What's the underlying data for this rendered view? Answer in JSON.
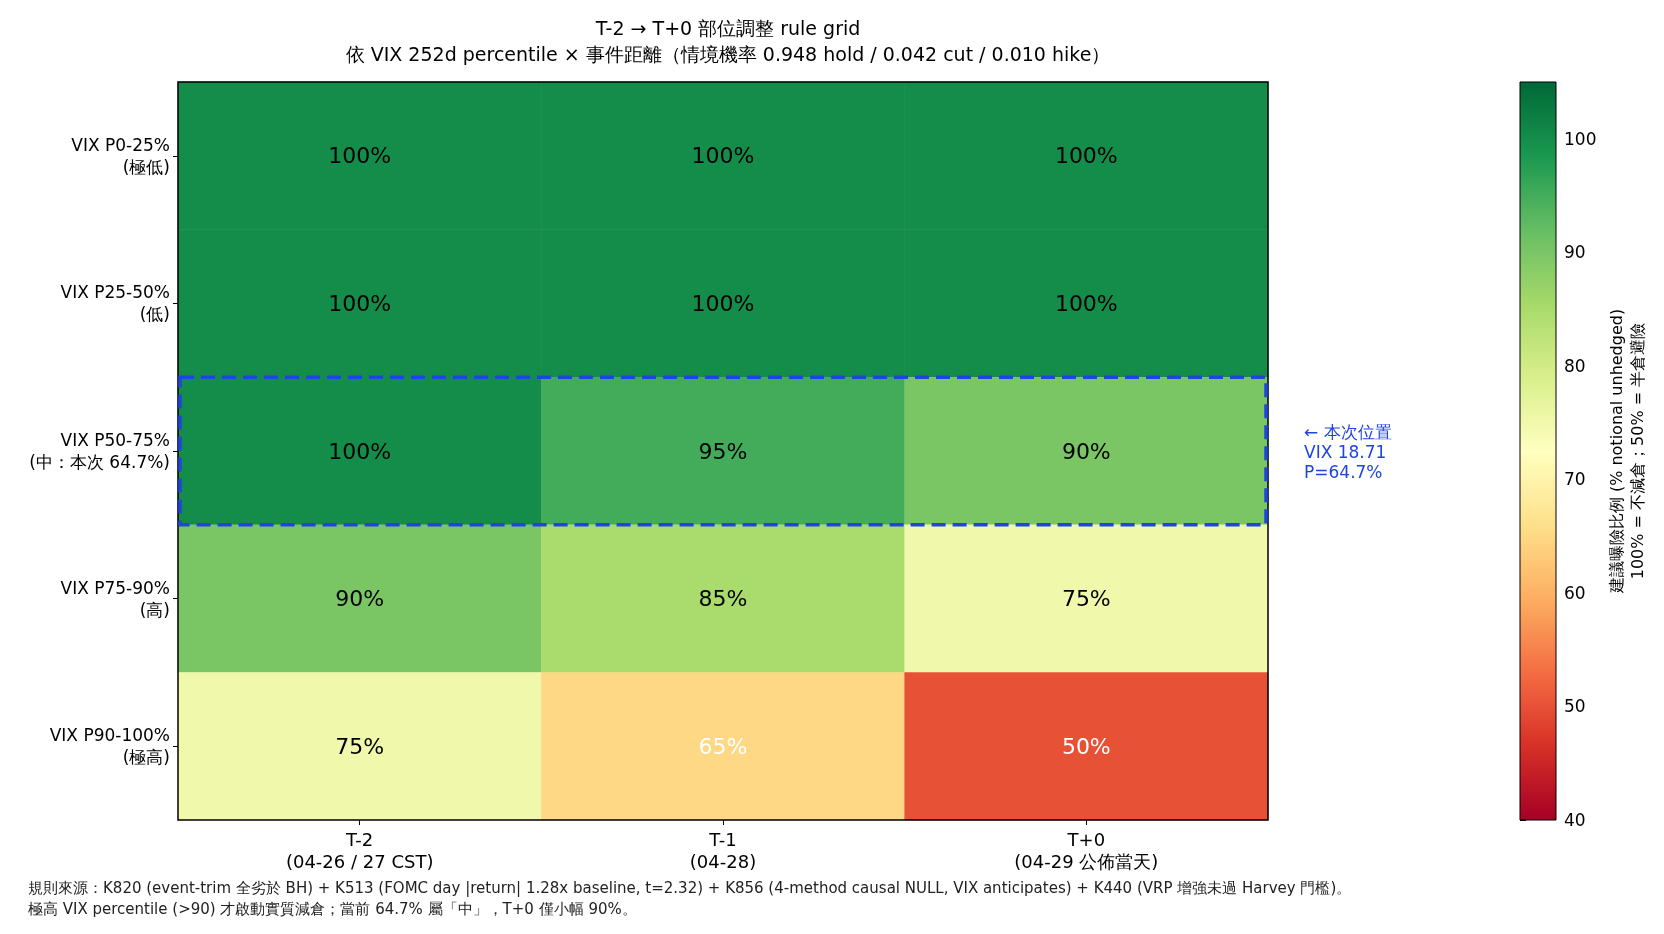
{
  "chart_data": {
    "type": "heatmap",
    "title": "T-2 → T+0 部位調整 rule grid",
    "subtitle": "依 VIX 252d percentile × 事件距離（情境機率 0.948 hold / 0.042 cut / 0.010 hike）",
    "categories": [
      "T-2\n(04-26 / 27 CST)",
      "T-1\n(04-28)",
      "T+0\n(04-29 公佈當天)"
    ],
    "y_categories": [
      "VIX P0-25%\n(極低)",
      "VIX P25-50%\n(低)",
      "VIX P50-75%\n(中：本次 64.7%)",
      "VIX P75-90%\n(高)",
      "VIX P90-100%\n(極高)"
    ],
    "cells": [
      [
        100,
        100,
        100
      ],
      [
        100,
        100,
        100
      ],
      [
        100,
        95,
        90
      ],
      [
        90,
        85,
        75
      ],
      [
        75,
        65,
        50
      ]
    ],
    "cell_labels": [
      [
        "100%",
        "100%",
        "100%"
      ],
      [
        "100%",
        "100%",
        "100%"
      ],
      [
        "100%",
        "95%",
        "90%"
      ],
      [
        "90%",
        "85%",
        "75%"
      ],
      [
        "75%",
        "65%",
        "50%"
      ]
    ],
    "clim": [
      40,
      105
    ],
    "cticks": [
      40,
      50,
      60,
      70,
      80,
      90,
      100
    ],
    "clabel": "建議曝險比例 (% notional unhedged)\n100% = 不減倉；50% = 半倉避險",
    "annotations": [
      "← 本次位置\nVIX 18.71\nP=64.7%",
      "規則來源：K820 (event-trim 全劣於 BH) + K513 (FOMC day |return| 1.28x baseline, t=2.32) + K856 (4-method causal NULL, VIX anticipates) + K440 (VRP 增強未過 Harvey 門檻)。",
      "極高 VIX percentile (>90) 才啟動實質減倉；當前 64.7% 屬「中」，T+0 僅小幅 90%。"
    ]
  }
}
